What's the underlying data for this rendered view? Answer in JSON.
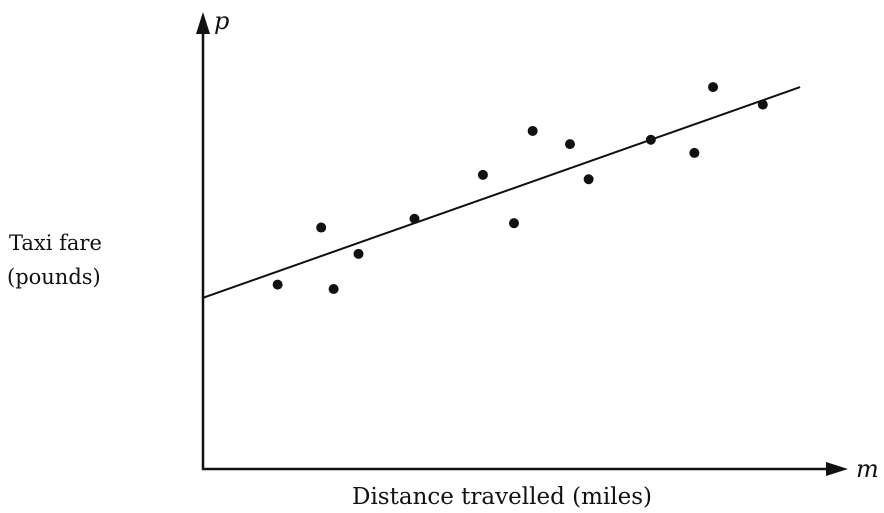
{
  "chart_data": {
    "type": "scatter",
    "xlabel": "Distance travelled (miles)",
    "ylabel_lines": [
      "Taxi fare",
      "(pounds)"
    ],
    "x_axis_symbol": "m",
    "y_axis_symbol": "p",
    "ticks_shown": false,
    "grid": false,
    "legend": "none",
    "colors": {
      "axis": "#111111",
      "points": "#111111",
      "line": "#111111"
    },
    "xlim": [
      0,
      100
    ],
    "ylim": [
      0,
      100
    ],
    "points": [
      {
        "x": 12,
        "y": 42
      },
      {
        "x": 19,
        "y": 55
      },
      {
        "x": 21,
        "y": 41
      },
      {
        "x": 25,
        "y": 49
      },
      {
        "x": 34,
        "y": 57
      },
      {
        "x": 45,
        "y": 67
      },
      {
        "x": 50,
        "y": 56
      },
      {
        "x": 53,
        "y": 77
      },
      {
        "x": 59,
        "y": 74
      },
      {
        "x": 62,
        "y": 66
      },
      {
        "x": 72,
        "y": 75
      },
      {
        "x": 79,
        "y": 72
      },
      {
        "x": 82,
        "y": 87
      },
      {
        "x": 90,
        "y": 83
      }
    ],
    "trend_line": {
      "type": "linear",
      "start": {
        "x": 0,
        "y": 39
      },
      "end": {
        "x": 96,
        "y": 87
      }
    }
  }
}
